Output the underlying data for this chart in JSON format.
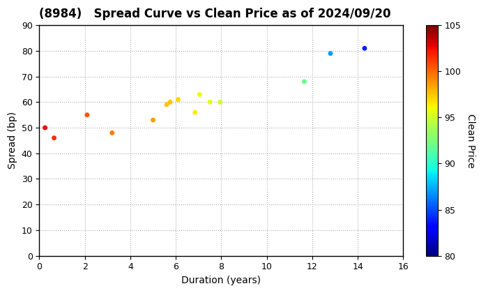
{
  "title": "(8984)   Spread Curve vs Clean Price as of 2024/09/20",
  "xlabel": "Duration (years)",
  "ylabel": "Spread (bp)",
  "colorbar_label": "Clean Price",
  "xlim": [
    0,
    16
  ],
  "ylim": [
    0,
    90
  ],
  "xticks": [
    0,
    2,
    4,
    6,
    8,
    10,
    12,
    14,
    16
  ],
  "yticks": [
    0,
    10,
    20,
    30,
    40,
    50,
    60,
    70,
    80,
    90
  ],
  "cmap_min": 80,
  "cmap_max": 105,
  "cbar_ticks": [
    80,
    85,
    90,
    95,
    100,
    105
  ],
  "points": [
    {
      "duration": 0.25,
      "spread": 50,
      "price": 102.5
    },
    {
      "duration": 0.65,
      "spread": 46,
      "price": 101.5
    },
    {
      "duration": 2.1,
      "spread": 55,
      "price": 100.5
    },
    {
      "duration": 3.2,
      "spread": 48,
      "price": 99.5
    },
    {
      "duration": 5.0,
      "spread": 53,
      "price": 98.5
    },
    {
      "duration": 5.6,
      "spread": 59,
      "price": 97.5
    },
    {
      "duration": 5.75,
      "spread": 60,
      "price": 97.5
    },
    {
      "duration": 6.1,
      "spread": 61,
      "price": 97.0
    },
    {
      "duration": 6.85,
      "spread": 56,
      "price": 96.5
    },
    {
      "duration": 7.05,
      "spread": 63,
      "price": 96.0
    },
    {
      "duration": 7.5,
      "spread": 60,
      "price": 95.5
    },
    {
      "duration": 7.95,
      "spread": 60,
      "price": 95.0
    },
    {
      "duration": 11.65,
      "spread": 68,
      "price": 92.0
    },
    {
      "duration": 12.8,
      "spread": 79,
      "price": 87.0
    },
    {
      "duration": 14.3,
      "spread": 81,
      "price": 84.0
    }
  ],
  "background_color": "#ffffff",
  "grid_color": "#aaaaaa",
  "title_fontsize": 12,
  "axis_fontsize": 10,
  "marker_size": 25
}
